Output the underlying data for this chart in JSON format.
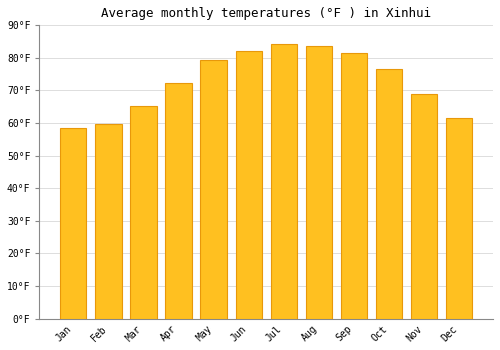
{
  "title": "Average monthly temperatures (°F ) in Xinhui",
  "months": [
    "Jan",
    "Feb",
    "Mar",
    "Apr",
    "May",
    "Jun",
    "Jul",
    "Aug",
    "Sep",
    "Oct",
    "Nov",
    "Dec"
  ],
  "values": [
    58.5,
    59.8,
    65.3,
    72.3,
    79.5,
    82.2,
    84.2,
    83.5,
    81.5,
    76.5,
    69.0,
    61.5
  ],
  "bar_color": "#FFC020",
  "bar_edge_color": "#E8980A",
  "background_color": "#FFFFFF",
  "grid_color": "#DDDDDD",
  "ylim": [
    0,
    90
  ],
  "yticks": [
    0,
    10,
    20,
    30,
    40,
    50,
    60,
    70,
    80,
    90
  ],
  "ytick_labels": [
    "0°F",
    "10°F",
    "20°F",
    "30°F",
    "40°F",
    "50°F",
    "60°F",
    "70°F",
    "80°F",
    "90°F"
  ],
  "title_fontsize": 9,
  "tick_fontsize": 7,
  "font_family": "monospace"
}
